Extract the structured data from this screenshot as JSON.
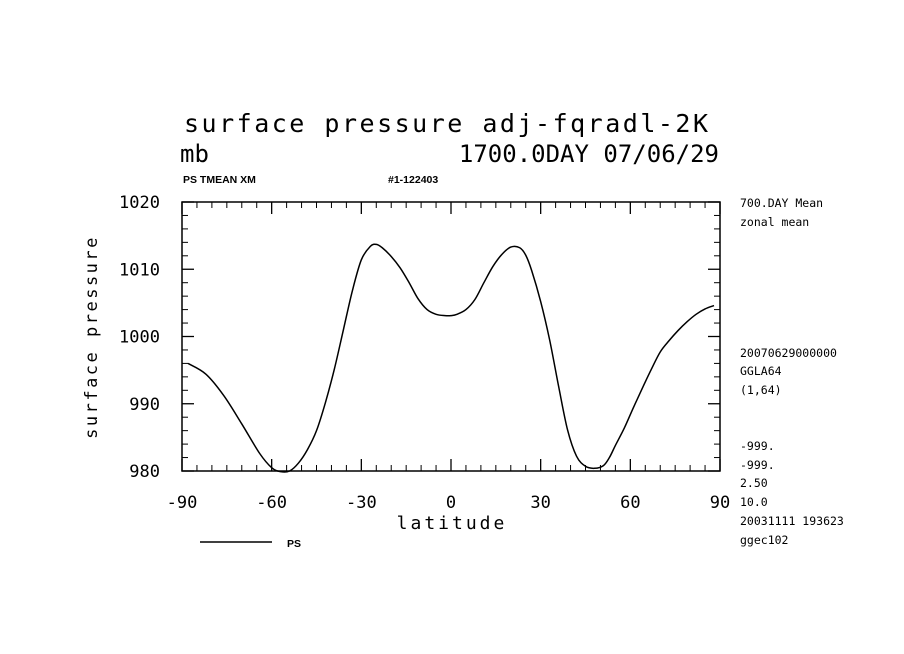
{
  "header": {
    "title": "surface pressure adj-fqradl-2K",
    "unit": "mb",
    "day_stamp": "1700.0DAY 07/06/29",
    "var_label": "PS TMEAN XM",
    "run_id": "#1-122403"
  },
  "side_notes": {
    "mean_label": "700.DAY Mean",
    "zonal_label": "zonal mean",
    "date_code": "20070629000000",
    "grid": "GGLA64",
    "index": "(1,64)",
    "missing_1": "-999.",
    "missing_2": "-999.",
    "val_1": "2.50",
    "val_2": "10.0",
    "timestamp": "20031111 193623",
    "host": "ggec102"
  },
  "legend": {
    "series_label": "PS"
  },
  "chart_data": {
    "type": "line",
    "xlabel": "latitude",
    "ylabel": "surface pressure",
    "xlim": [
      -90,
      90
    ],
    "ylim": [
      980,
      1020
    ],
    "xticks": [
      -90,
      -60,
      -30,
      0,
      30,
      60,
      90
    ],
    "yticks": [
      980,
      990,
      1000,
      1010,
      1020
    ],
    "x_tick_labels": [
      "-90",
      "-60",
      "-30",
      "0",
      "30",
      "60",
      "90"
    ],
    "y_tick_labels": [
      "980",
      "990",
      "1000",
      "1010",
      "1020"
    ],
    "series": [
      {
        "name": "PS",
        "color": "#000000",
        "x": [
          -88,
          -82,
          -76,
          -70,
          -64,
          -60,
          -57,
          -54,
          -51,
          -48,
          -45,
          -42,
          -39,
          -36,
          -33,
          -30,
          -27,
          -25,
          -23,
          -20,
          -17,
          -14,
          -11,
          -8,
          -5,
          -2,
          0,
          2,
          5,
          8,
          11,
          14,
          17,
          20,
          23,
          25,
          27,
          30,
          33,
          36,
          39,
          42,
          45,
          48,
          51,
          53,
          55,
          58,
          61,
          64,
          67,
          70,
          73,
          76,
          79,
          82,
          85,
          88
        ],
        "y": [
          996.0,
          994.4,
          991.2,
          987.0,
          982.6,
          980.5,
          979.9,
          980.0,
          981.2,
          983.2,
          986.0,
          990.2,
          995.2,
          1001.0,
          1006.8,
          1011.4,
          1013.4,
          1013.7,
          1013.2,
          1011.9,
          1010.2,
          1008.0,
          1005.6,
          1004.0,
          1003.3,
          1003.1,
          1003.1,
          1003.3,
          1004.0,
          1005.5,
          1008.0,
          1010.4,
          1012.2,
          1013.3,
          1013.2,
          1012.1,
          1009.8,
          1005.2,
          999.5,
          992.6,
          986.1,
          982.2,
          980.7,
          980.4,
          980.8,
          982.0,
          983.8,
          986.4,
          989.4,
          992.3,
          995.1,
          997.7,
          999.4,
          1000.9,
          1002.2,
          1003.3,
          1004.1,
          1004.6
        ]
      }
    ]
  }
}
